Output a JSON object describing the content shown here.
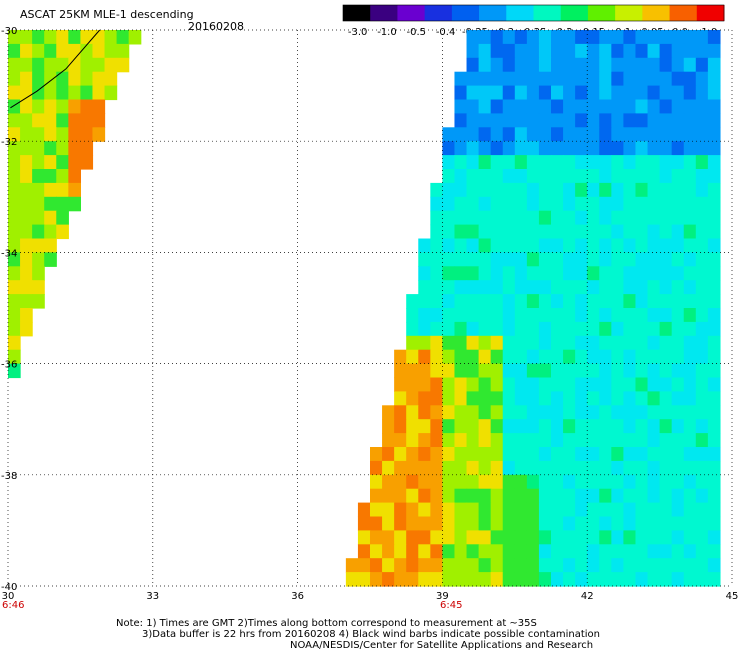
{
  "header": {
    "title": "ASCAT 25KM MLE-1 descending",
    "date": "20160208"
  },
  "colorbar": {
    "labels": [
      "-3.0",
      "-1.0",
      "-0.5",
      "-0.4",
      "-0.35",
      "-0.3",
      "-0.25",
      "-0.2",
      "-0.15",
      "-0.1",
      "-0.05",
      "0.0",
      "1.0"
    ],
    "colors": [
      "#000000",
      "#3a0080",
      "#6a00d0",
      "#1830e0",
      "#0060f0",
      "#0098f8",
      "#00d8f8",
      "#00f8c0",
      "#00f060",
      "#60f000",
      "#c8f000",
      "#f8c000",
      "#f86000",
      "#f00000"
    ]
  },
  "map": {
    "lon_labels": [
      "30",
      "33",
      "36",
      "39",
      "42",
      "45"
    ],
    "lat_labels": [
      "-30",
      "-32",
      "-34",
      "-36",
      "-38",
      "-40"
    ],
    "lon_range": [
      30,
      45
    ],
    "lat_range": [
      -40,
      -30
    ],
    "time_labels": [
      "6:46",
      "6:45"
    ],
    "time_color": "#cc0000",
    "grid": "dotted"
  },
  "notes": [
    "Note: 1) Times are GMT 2)Times along bottom correspond to measurement at ~35S",
    "3)Data buffer is 22 hrs from 20160208 4) Black wind barbs indicate possible contamination",
    "NOAA/NESDIS/Center for Satellite Applications and Research"
  ]
}
